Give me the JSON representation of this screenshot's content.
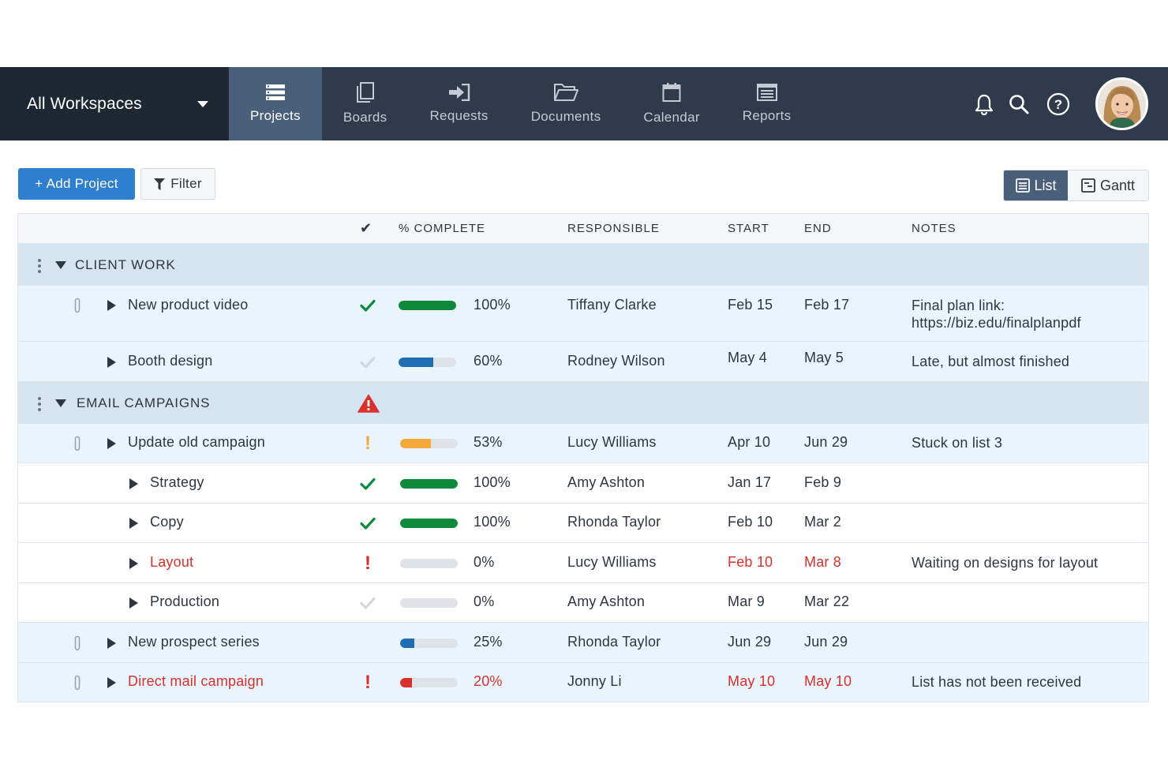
{
  "workspace": {
    "label": "All Workspaces"
  },
  "nav": {
    "tabs": [
      {
        "label": "Projects",
        "icon": "projects-icon",
        "active": true
      },
      {
        "label": "Boards",
        "icon": "boards-icon"
      },
      {
        "label": "Requests",
        "icon": "requests-icon"
      },
      {
        "label": "Documents",
        "icon": "documents-icon"
      },
      {
        "label": "Calendar",
        "icon": "calendar-icon"
      },
      {
        "label": "Reports",
        "icon": "reports-icon"
      }
    ],
    "right_icons": [
      "bell-icon",
      "search-icon",
      "help-icon",
      "user-avatar"
    ]
  },
  "toolbar": {
    "add_label": "+ Add Project",
    "filter_label": "Filter",
    "list_label": "List",
    "gantt_label": "Gantt",
    "active_view": "List"
  },
  "table": {
    "headers": {
      "status": "✔",
      "complete": "% COMPLETE",
      "responsible": "RESPONSIBLE",
      "start": "START",
      "end": "END",
      "notes": "NOTES"
    },
    "groups": [
      {
        "title": "CLIENT WORK",
        "warning": false
      },
      {
        "title": "EMAIL CAMPAIGNS",
        "warning": true
      }
    ],
    "rows": [
      {
        "name": "New product video",
        "status": "done",
        "complete_pct": 100,
        "complete_label": "100%",
        "bar_color": "#0d8a3c",
        "responsible": "Tiffany Clarke",
        "start": "Feb 15",
        "end": "Feb 17",
        "notes_line1": "Final plan link:",
        "notes_line2": "https://biz.edu/finalplanpdf",
        "attachment": true,
        "overdue": false
      },
      {
        "name": "Booth design",
        "status": "pending",
        "complete_pct": 60,
        "complete_label": "60%",
        "bar_color": "#1f6eb5",
        "responsible": "Rodney Wilson",
        "start": "May 4",
        "end": "May 5",
        "notes_line1": "Late, but almost finished",
        "attachment": false,
        "overdue": false
      },
      {
        "name": "Update old campaign",
        "status": "warning",
        "complete_pct": 53,
        "complete_label": "53%",
        "bar_color": "#f5a93a",
        "responsible": "Lucy Williams",
        "start": "Apr 10",
        "end": "Jun 29",
        "notes_line1": "Stuck on list 3",
        "attachment": true,
        "overdue": false
      },
      {
        "name": "Strategy",
        "status": "done",
        "complete_pct": 100,
        "complete_label": "100%",
        "bar_color": "#0d8a3c",
        "responsible": "Amy Ashton",
        "start": "Jan 17",
        "end": "Feb 9",
        "notes_line1": "",
        "attachment": false,
        "overdue": false
      },
      {
        "name": "Copy",
        "status": "done",
        "complete_pct": 100,
        "complete_label": "100%",
        "bar_color": "#0d8a3c",
        "responsible": "Rhonda Taylor",
        "start": "Feb 10",
        "end": "Mar 2",
        "notes_line1": "",
        "attachment": false,
        "overdue": false
      },
      {
        "name": "Layout",
        "status": "overdue",
        "complete_pct": 0,
        "complete_label": "0%",
        "bar_color": "#d9302b",
        "responsible": "Lucy Williams",
        "start": "Feb 10",
        "end": "Mar 8",
        "notes_line1": "Waiting on designs for layout",
        "attachment": false,
        "overdue": true
      },
      {
        "name": "Production",
        "status": "pending",
        "complete_pct": 0,
        "complete_label": "0%",
        "bar_color": "#1f6eb5",
        "responsible": "Amy Ashton",
        "start": "Mar 9",
        "end": "Mar 22",
        "notes_line1": "",
        "attachment": false,
        "overdue": false
      },
      {
        "name": "New prospect series",
        "status": "none",
        "complete_pct": 25,
        "complete_label": "25%",
        "bar_color": "#1f6eb5",
        "responsible": "Rhonda Taylor",
        "start": "Jun 29",
        "end": "Jun 29",
        "notes_line1": "",
        "attachment": true,
        "overdue": false
      },
      {
        "name": "Direct mail campaign",
        "status": "overdue",
        "complete_pct": 20,
        "complete_label": "20%",
        "bar_color": "#d9302b",
        "responsible": "Jonny Li",
        "start": "May 10",
        "end": "May 10",
        "notes_line1": "List has not been received",
        "attachment": true,
        "overdue": true
      }
    ]
  },
  "colors": {
    "nav_bg": "#2f3b4c",
    "workspace_bg": "#1f2733",
    "active_tab": "#4a5f79",
    "primary": "#2f7fd0",
    "done": "#0d8a3c",
    "warning": "#f5a93a",
    "danger": "#d9302b",
    "group_row": "#d4e4f1",
    "child_row": "#eaf4fd"
  }
}
